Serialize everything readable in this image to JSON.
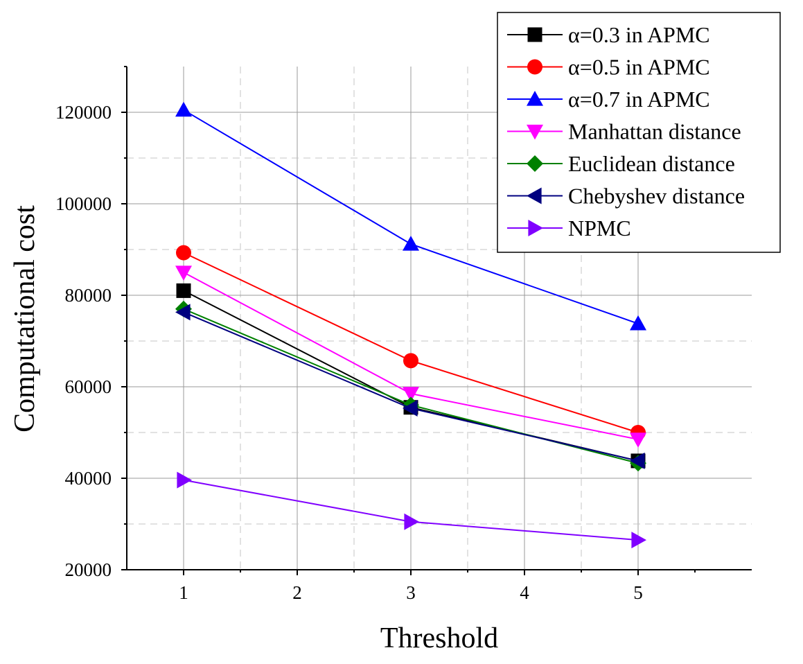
{
  "chart_data": {
    "type": "line",
    "title": "",
    "xlabel": "Threshold",
    "ylabel": "Computational cost",
    "xlim": [
      0.5,
      6.0
    ],
    "ylim": [
      20000,
      130000
    ],
    "x_ticks": [
      "1",
      "2",
      "3",
      "4",
      "5"
    ],
    "y_ticks": [
      "20000",
      "40000",
      "60000",
      "80000",
      "100000",
      "120000"
    ],
    "grid": true,
    "legend_position": "top-right",
    "x": [
      1,
      3,
      5
    ],
    "series": [
      {
        "name": "α=0.3 in APMC",
        "color": "#000000",
        "marker": "square",
        "values": [
          81000,
          55500,
          43800
        ]
      },
      {
        "name": "α=0.5 in APMC",
        "color": "#ff0000",
        "marker": "circle",
        "values": [
          89300,
          65700,
          50000
        ]
      },
      {
        "name": "α=0.7 in APMC",
        "color": "#0000ff",
        "marker": "triangle-up",
        "values": [
          120500,
          91200,
          73800
        ]
      },
      {
        "name": "Manhattan distance",
        "color": "#ff00ff",
        "marker": "triangle-down",
        "values": [
          85000,
          58500,
          48500
        ]
      },
      {
        "name": "Euclidean distance",
        "color": "#008000",
        "marker": "diamond",
        "values": [
          77000,
          56000,
          43300
        ]
      },
      {
        "name": "Chebyshev distance",
        "color": "#000080",
        "marker": "triangle-left",
        "values": [
          76300,
          55300,
          43800
        ]
      },
      {
        "name": "NPMC",
        "color": "#8000ff",
        "marker": "triangle-right",
        "values": [
          39600,
          30500,
          26500
        ]
      }
    ]
  }
}
